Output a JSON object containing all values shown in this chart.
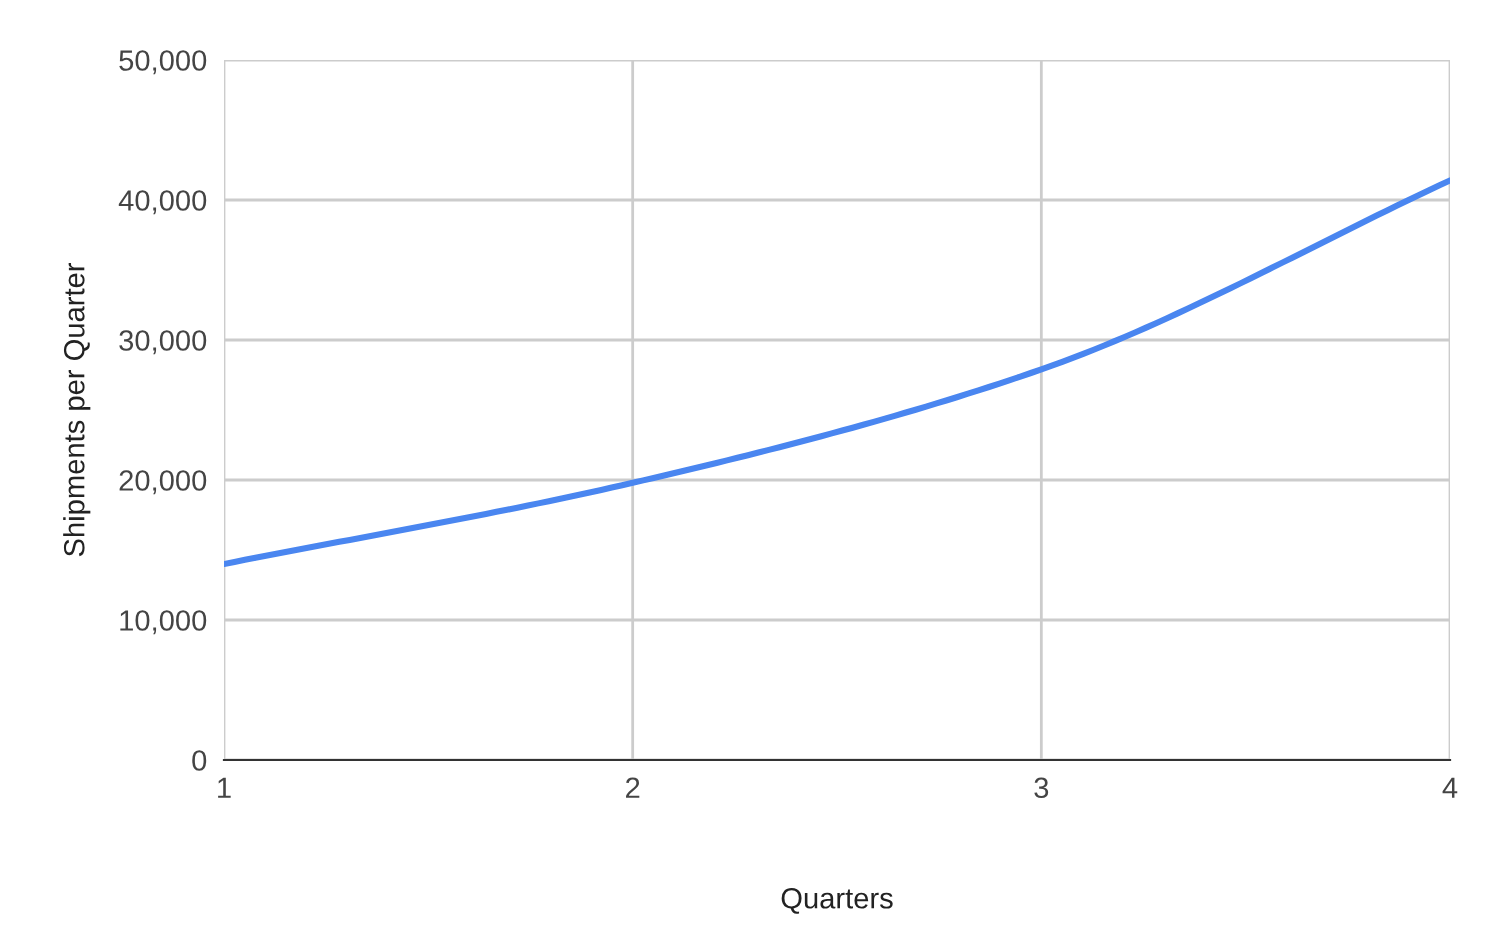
{
  "chart_data": {
    "type": "line",
    "xlabel": "Quarters",
    "ylabel": "Shipments per Quarter",
    "x": [
      1,
      2,
      3,
      4
    ],
    "series": [
      {
        "color": "#4a86f0",
        "values": [
          14000,
          19800,
          27900,
          41400
        ]
      }
    ],
    "xlim": [
      1,
      4
    ],
    "xticks": [
      1,
      2,
      3,
      4
    ],
    "ylim": [
      0,
      50000
    ],
    "yticks": [
      {
        "value": 0,
        "label": "0"
      },
      {
        "value": 10000,
        "label": "10,000"
      },
      {
        "value": 20000,
        "label": "20,000"
      },
      {
        "value": 30000,
        "label": "30,000"
      },
      {
        "value": 40000,
        "label": "40,000"
      },
      {
        "value": 50000,
        "label": "50,000"
      }
    ],
    "grid": true,
    "marker": "none",
    "line_style": "solid"
  }
}
